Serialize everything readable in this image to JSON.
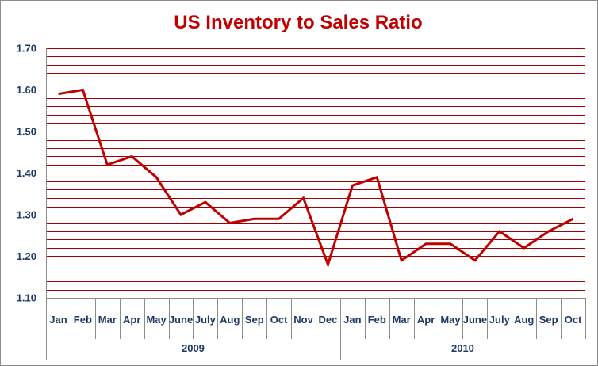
{
  "chart_data": {
    "type": "line",
    "title": "US Inventory to Sales Ratio",
    "xlabel": "",
    "ylabel": "",
    "categories": [
      "Jan",
      "Feb",
      "Mar",
      "Apr",
      "May",
      "June",
      "July",
      "Aug",
      "Sep",
      "Oct",
      "Nov",
      "Dec",
      "Jan",
      "Feb",
      "Mar",
      "Apr",
      "May",
      "June",
      "July",
      "Aug",
      "Sep",
      "Oct"
    ],
    "groups": [
      {
        "label": "2009",
        "count": 12
      },
      {
        "label": "2010",
        "count": 10
      }
    ],
    "series": [
      {
        "values": [
          1.59,
          1.6,
          1.42,
          1.44,
          1.39,
          1.3,
          1.33,
          1.28,
          1.29,
          1.29,
          1.34,
          1.18,
          1.37,
          1.39,
          1.19,
          1.23,
          1.23,
          1.19,
          1.26,
          1.22,
          1.26,
          1.29
        ]
      }
    ],
    "ylim": [
      1.1,
      1.7
    ],
    "yticks": [
      "1.10",
      "1.20",
      "1.30",
      "1.40",
      "1.50",
      "1.60",
      "1.70"
    ],
    "grid": true,
    "legend": "none",
    "colors": {
      "line": "#c00000",
      "gridline": "#a00000",
      "title": "#c00000",
      "tick_text": "#1f3864",
      "axis": "#8c8c8c"
    }
  }
}
